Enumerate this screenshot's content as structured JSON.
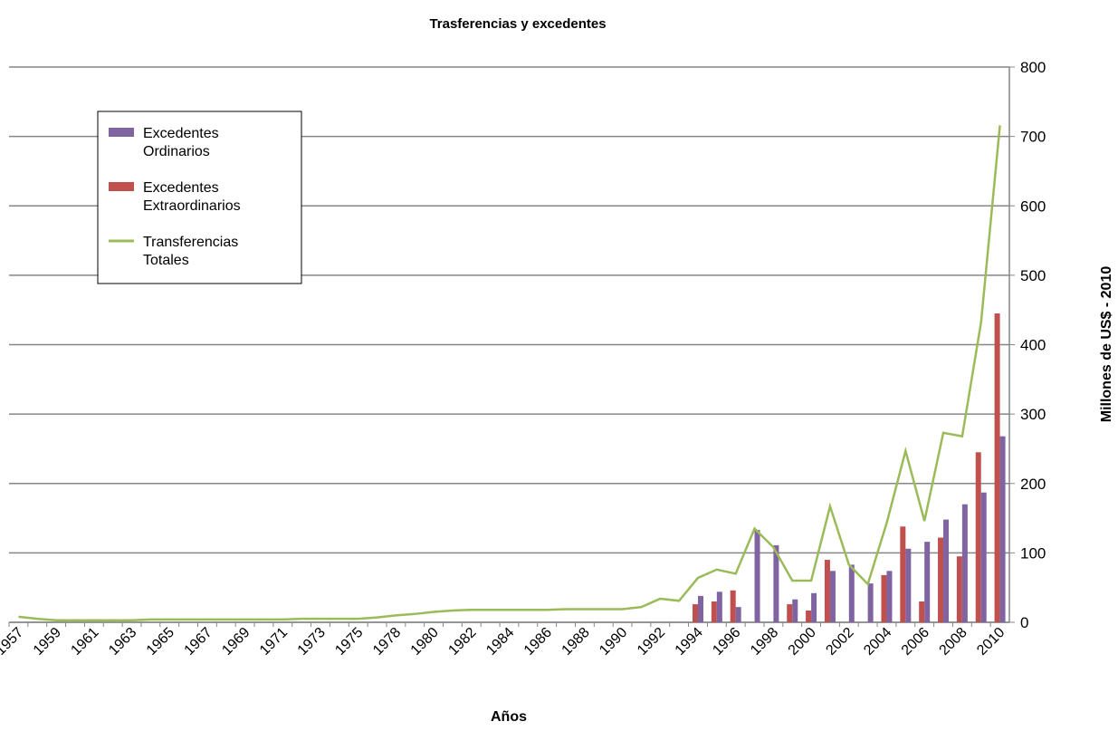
{
  "chart_data": {
    "type": "bar_line",
    "title": "Trasferencias y excedentes",
    "xlabel": "Años",
    "ylabel": "Millones de US$ - 2010",
    "categories": [
      "1957",
      null,
      "1959",
      null,
      "1961",
      null,
      "1963",
      null,
      "1965",
      null,
      "1967",
      null,
      "1969",
      null,
      "1971",
      null,
      "1973",
      null,
      "1975",
      null,
      "1978",
      null,
      "1980",
      null,
      "1982",
      null,
      "1984",
      null,
      "1986",
      null,
      "1988",
      null,
      "1990",
      null,
      "1992",
      null,
      "1994",
      null,
      "1996",
      null,
      "1998",
      null,
      "2000",
      null,
      "2002",
      null,
      "2004",
      null,
      "2006",
      null,
      "2008",
      null,
      "2010"
    ],
    "series": [
      {
        "name": "Excedentes Extraordinarios",
        "kind": "bar",
        "color": "#c0504d",
        "values": [
          null,
          null,
          null,
          null,
          null,
          null,
          null,
          null,
          null,
          null,
          null,
          null,
          null,
          null,
          null,
          null,
          null,
          null,
          null,
          null,
          null,
          null,
          null,
          null,
          null,
          null,
          null,
          null,
          null,
          null,
          null,
          null,
          null,
          null,
          null,
          null,
          26,
          30,
          46,
          null,
          null,
          26,
          17,
          90,
          null,
          null,
          68,
          138,
          30,
          122,
          95,
          245,
          445
        ]
      },
      {
        "name": "Excedentes Ordinarios",
        "kind": "bar",
        "color": "#8064a2",
        "values": [
          null,
          null,
          null,
          null,
          null,
          null,
          null,
          null,
          null,
          null,
          null,
          null,
          null,
          null,
          null,
          null,
          null,
          null,
          null,
          null,
          null,
          null,
          null,
          null,
          null,
          null,
          null,
          null,
          null,
          null,
          null,
          null,
          null,
          null,
          null,
          null,
          38,
          44,
          22,
          133,
          111,
          33,
          42,
          74,
          83,
          56,
          74,
          106,
          116,
          148,
          170,
          187,
          268
        ]
      },
      {
        "name": "Transferencias Totales",
        "kind": "line",
        "color": "#9bbb59",
        "values": [
          8,
          5,
          3,
          3,
          3,
          3,
          3,
          4,
          4,
          4,
          4,
          4,
          4,
          4,
          4,
          5,
          5,
          5,
          5,
          7,
          10,
          12,
          15,
          17,
          18,
          18,
          18,
          18,
          18,
          19,
          19,
          19,
          19,
          22,
          34,
          31,
          64,
          76,
          70,
          135,
          108,
          60,
          60,
          167,
          83,
          55,
          143,
          247,
          146,
          273,
          268,
          432,
          716
        ]
      }
    ],
    "legend_order": [
      1,
      0,
      2
    ],
    "ylim": [
      0,
      800
    ],
    "yticks": [
      0,
      100,
      200,
      300,
      400,
      500,
      600,
      700,
      800
    ],
    "grid": true
  }
}
